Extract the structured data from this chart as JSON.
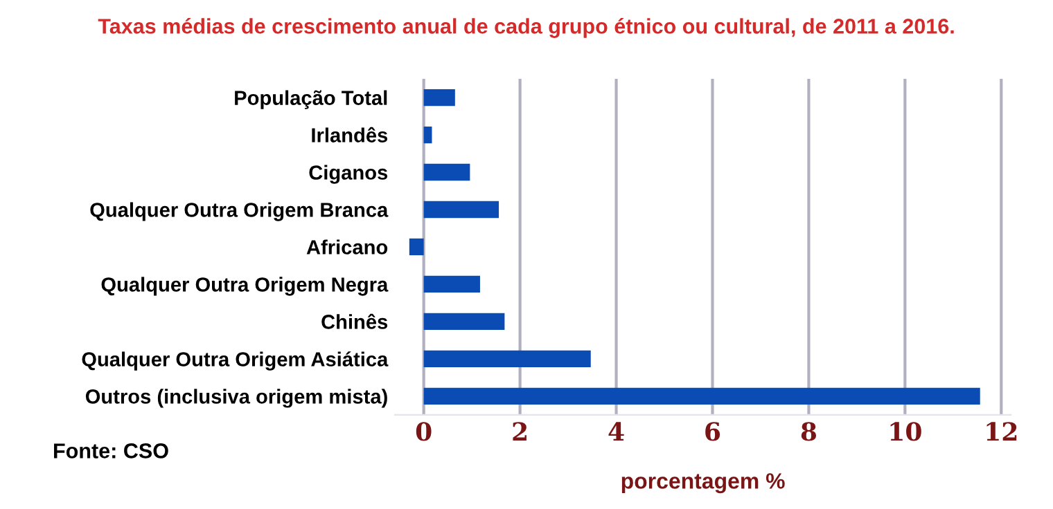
{
  "chart_data": {
    "type": "bar",
    "orientation": "horizontal",
    "title": "Taxas médias de crescimento anual de cada grupo étnico ou cultural, de 2011 a 2016.",
    "categories": [
      "População Total",
      "Irlandês",
      "Ciganos",
      "Qualquer Outra Origem Branca",
      "Africano",
      "Qualquer Outra Origem Negra",
      "Chinês",
      "Qualquer Outra Origem Asiática",
      "Outros (inclusiva origem mista)"
    ],
    "values": [
      0.65,
      0.17,
      0.96,
      1.56,
      -0.3,
      1.17,
      1.68,
      3.47,
      11.56
    ],
    "color": "#0a4cb4",
    "xlabel": "porcentagem %",
    "xlim": [
      -0.6,
      12.2
    ],
    "xticks": [
      0,
      2,
      4,
      6,
      8,
      10,
      12
    ],
    "grid": "x",
    "annotations": [
      "Fonte: CSO"
    ]
  }
}
